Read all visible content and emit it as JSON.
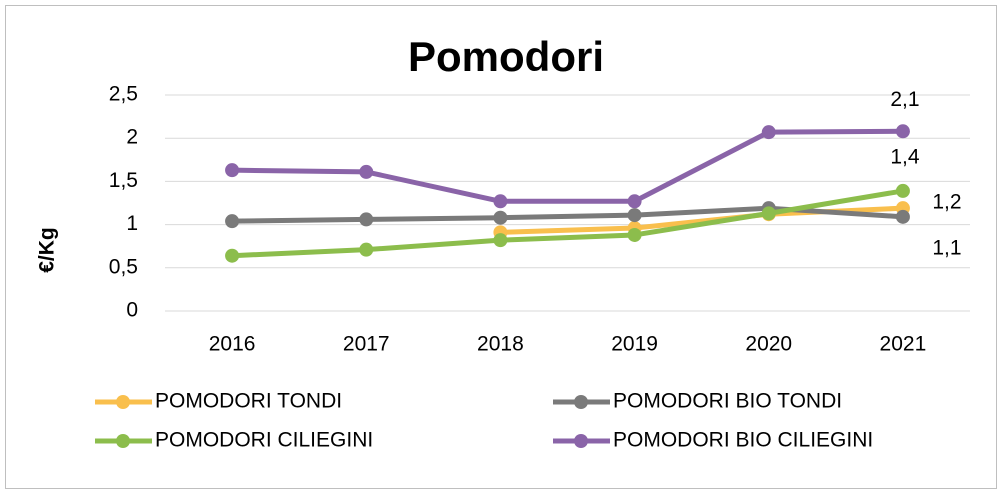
{
  "chart_data": {
    "type": "line",
    "title": "Pomodori",
    "y_label": "€/Kg",
    "categories": [
      "2016",
      "2017",
      "2018",
      "2019",
      "2020",
      "2021"
    ],
    "series": [
      {
        "name": "POMODORI TONDI",
        "color": "#f9bf4d",
        "values": [
          null,
          null,
          0.91,
          0.96,
          1.12,
          1.19
        ],
        "value_labels": [
          null,
          null,
          null,
          null,
          null,
          "1,2"
        ]
      },
      {
        "name": "POMODORI BIO TONDI",
        "color": "#7a7a7a",
        "values": [
          1.04,
          1.06,
          1.08,
          1.11,
          1.19,
          1.09
        ],
        "value_labels": [
          null,
          null,
          null,
          null,
          null,
          "1,1"
        ]
      },
      {
        "name": "POMODORI CILIEGINI",
        "color": "#8cbd4c",
        "values": [
          0.64,
          0.71,
          0.82,
          0.88,
          1.13,
          1.39
        ],
        "value_labels": [
          null,
          null,
          null,
          null,
          null,
          "1,4"
        ]
      },
      {
        "name": "POMODORI BIO CILIEGINI",
        "color": "#8a64a8",
        "values": [
          1.63,
          1.61,
          1.27,
          1.27,
          2.07,
          2.08
        ],
        "value_labels": [
          null,
          null,
          null,
          null,
          null,
          "2,1"
        ]
      }
    ],
    "ylim": [
      0,
      2.5
    ],
    "yticks": [
      0,
      {
        "value": 0.5,
        "label": "0,5"
      },
      1,
      {
        "value": 1.5,
        "label": "1,5"
      },
      2,
      {
        "value": 2.5,
        "label": "2,5"
      }
    ],
    "grid": true
  }
}
